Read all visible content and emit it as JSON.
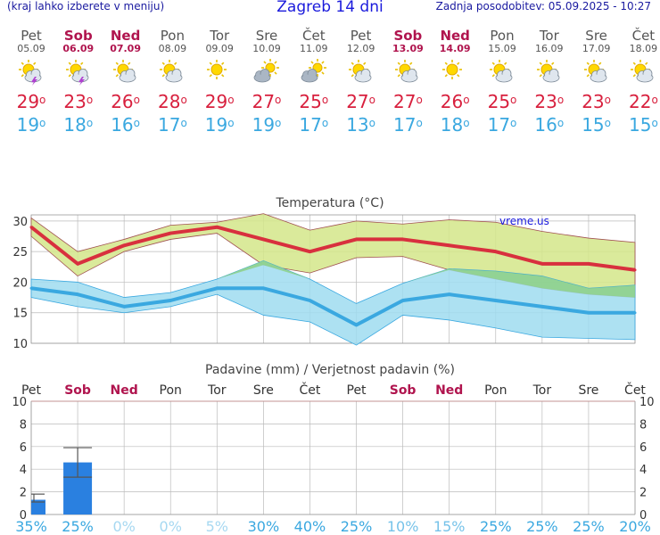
{
  "header": {
    "menu_note": "(kraj lahko izberete v meniju)",
    "title": "Zagreb 14 dni",
    "updated": "Zadnja posodobitev: 05.09.2025 - 10:27"
  },
  "days": [
    {
      "name": "Pet",
      "date": "05.09",
      "weekend": false,
      "icon": "sun-storm-icon",
      "tmax": "29",
      "tmin": "19"
    },
    {
      "name": "Sob",
      "date": "06.09",
      "weekend": true,
      "icon": "sun-storm-icon",
      "tmax": "23",
      "tmin": "18"
    },
    {
      "name": "Ned",
      "date": "07.09",
      "weekend": true,
      "icon": "sun-cloud-icon",
      "tmax": "26",
      "tmin": "16"
    },
    {
      "name": "Pon",
      "date": "08.09",
      "weekend": false,
      "icon": "sun-cloud-icon",
      "tmax": "28",
      "tmin": "17"
    },
    {
      "name": "Tor",
      "date": "09.09",
      "weekend": false,
      "icon": "sun-icon",
      "tmax": "29",
      "tmin": "19"
    },
    {
      "name": "Sre",
      "date": "10.09",
      "weekend": false,
      "icon": "cloud-sun-icon",
      "tmax": "27",
      "tmin": "19"
    },
    {
      "name": "Čet",
      "date": "11.09",
      "weekend": false,
      "icon": "cloud-sun-icon",
      "tmax": "25",
      "tmin": "17"
    },
    {
      "name": "Pet",
      "date": "12.09",
      "weekend": false,
      "icon": "sun-cloud-icon",
      "tmax": "27",
      "tmin": "13"
    },
    {
      "name": "Sob",
      "date": "13.09",
      "weekend": true,
      "icon": "sun-cloud-icon",
      "tmax": "27",
      "tmin": "17"
    },
    {
      "name": "Ned",
      "date": "14.09",
      "weekend": true,
      "icon": "sun-icon",
      "tmax": "26",
      "tmin": "18"
    },
    {
      "name": "Pon",
      "date": "15.09",
      "weekend": false,
      "icon": "sun-cloud-icon",
      "tmax": "25",
      "tmin": "17"
    },
    {
      "name": "Tor",
      "date": "16.09",
      "weekend": false,
      "icon": "sun-cloud-icon",
      "tmax": "23",
      "tmin": "16"
    },
    {
      "name": "Sre",
      "date": "17.09",
      "weekend": false,
      "icon": "sun-cloud-icon",
      "tmax": "23",
      "tmin": "15"
    },
    {
      "name": "Čet",
      "date": "18.09",
      "weekend": false,
      "icon": "sun-cloud-icon",
      "tmax": "22",
      "tmin": "15"
    }
  ],
  "colors": {
    "max_line": "#d8303e",
    "max_band": "#d4e68a",
    "min_line": "#3aa8e0",
    "min_band": "#9fdcf0",
    "overlap": "#8ccf80",
    "bar": "#2a80e0",
    "weekend": "#b0144e",
    "prob": "#3aa8e0",
    "grid": "#bbbbbb"
  },
  "chart_data": [
    {
      "type": "line",
      "title": "Temperatura (°C)",
      "watermark": "vreme.us",
      "categories": [
        "05.09",
        "06.09",
        "07.09",
        "08.09",
        "09.09",
        "10.09",
        "11.09",
        "12.09",
        "13.09",
        "14.09",
        "15.09",
        "16.09",
        "17.09",
        "18.09"
      ],
      "ylim": [
        10,
        31
      ],
      "yticks": [
        10,
        15,
        20,
        25,
        30
      ],
      "series": [
        {
          "role": "max",
          "values": [
            29,
            23,
            26,
            28,
            29,
            27,
            25,
            27,
            27,
            26,
            25,
            23,
            23,
            22
          ],
          "band_high": [
            30.5,
            25,
            27,
            29.3,
            29.8,
            31.2,
            28.5,
            30,
            29.5,
            30.2,
            29.8,
            28.3,
            27.2,
            26.5
          ],
          "band_low": [
            27.5,
            21,
            25,
            27,
            28,
            22.8,
            21.5,
            24,
            24.2,
            22,
            20.5,
            19,
            18,
            17.5
          ]
        },
        {
          "role": "min",
          "values": [
            19,
            18,
            16,
            17,
            19,
            19,
            17,
            13,
            17,
            18,
            17,
            16,
            15,
            15
          ],
          "band_high": [
            20.5,
            20,
            17.5,
            18.3,
            20.5,
            23.5,
            20.5,
            16.5,
            19.8,
            22.2,
            21.8,
            21,
            19,
            19.5
          ],
          "band_low": [
            17.5,
            16,
            15,
            16,
            18,
            14.6,
            13.5,
            9.7,
            14.6,
            13.8,
            12.5,
            11,
            10.8,
            10.6
          ]
        }
      ]
    },
    {
      "type": "bar",
      "title": "Padavine (mm) / Verjetnost padavin (%)",
      "categories": [
        "Pet",
        "Sob",
        "Ned",
        "Pon",
        "Tor",
        "Sre",
        "Čet",
        "Pet",
        "Sob",
        "Ned",
        "Pon",
        "Tor",
        "Sre",
        "Čet"
      ],
      "weekend": [
        false,
        true,
        true,
        false,
        false,
        false,
        false,
        false,
        true,
        true,
        false,
        false,
        false,
        false
      ],
      "values": [
        1.3,
        4.6,
        0,
        0,
        0,
        0,
        0,
        0,
        0,
        0,
        0,
        0,
        0,
        0
      ],
      "error_high": [
        1.8,
        5.9,
        0,
        0,
        0,
        0,
        0,
        0,
        0,
        0,
        0,
        0,
        0,
        0
      ],
      "error_low": [
        1.1,
        3.3,
        0,
        0,
        0,
        0,
        0,
        0,
        0,
        0,
        0,
        0,
        0,
        0
      ],
      "probability": [
        "35%",
        "25%",
        "0%",
        "0%",
        "5%",
        "30%",
        "40%",
        "25%",
        "10%",
        "15%",
        "25%",
        "25%",
        "25%",
        "20%"
      ],
      "prob_values": [
        35,
        25,
        0,
        0,
        5,
        30,
        40,
        25,
        10,
        15,
        25,
        25,
        25,
        20
      ],
      "ylim": [
        0,
        10
      ],
      "yticks": [
        0,
        2,
        4,
        6,
        8,
        10
      ]
    }
  ]
}
